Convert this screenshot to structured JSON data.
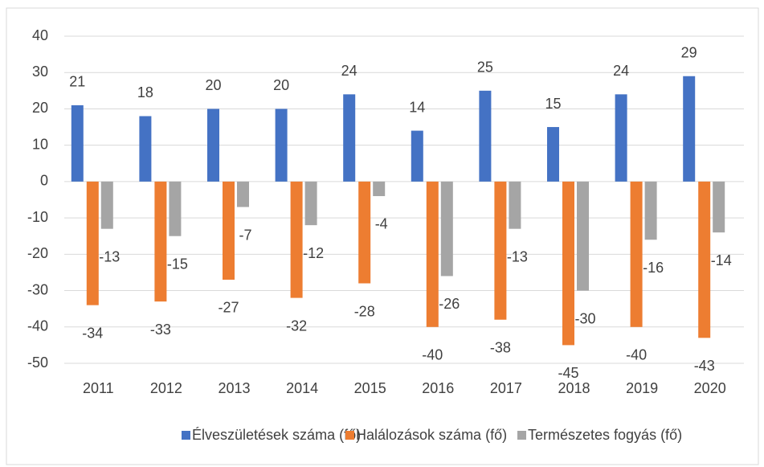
{
  "chart_data": {
    "type": "bar",
    "categories": [
      "2011",
      "2012",
      "2013",
      "2014",
      "2015",
      "2016",
      "2017",
      "2018",
      "2019",
      "2020"
    ],
    "series": [
      {
        "name": "Élveszületések száma (fő)",
        "color": "#4472c4",
        "values": [
          21,
          18,
          20,
          20,
          24,
          14,
          25,
          15,
          24,
          29
        ]
      },
      {
        "name": "Halálozások száma (fő)",
        "color": "#ed7d31",
        "values": [
          -34,
          -33,
          -27,
          -32,
          -28,
          -40,
          -38,
          -45,
          -40,
          -43
        ]
      },
      {
        "name": "Természetes fogyás (fő)",
        "color": "#a5a5a5",
        "values": [
          -13,
          -15,
          -7,
          -12,
          -4,
          -26,
          -13,
          -30,
          -16,
          -14
        ]
      }
    ],
    "ylim": [
      -50,
      40
    ],
    "yticks": [
      -50,
      -40,
      -30,
      -20,
      -10,
      0,
      10,
      20,
      30,
      40
    ],
    "grid": true,
    "legend": "bottom"
  }
}
